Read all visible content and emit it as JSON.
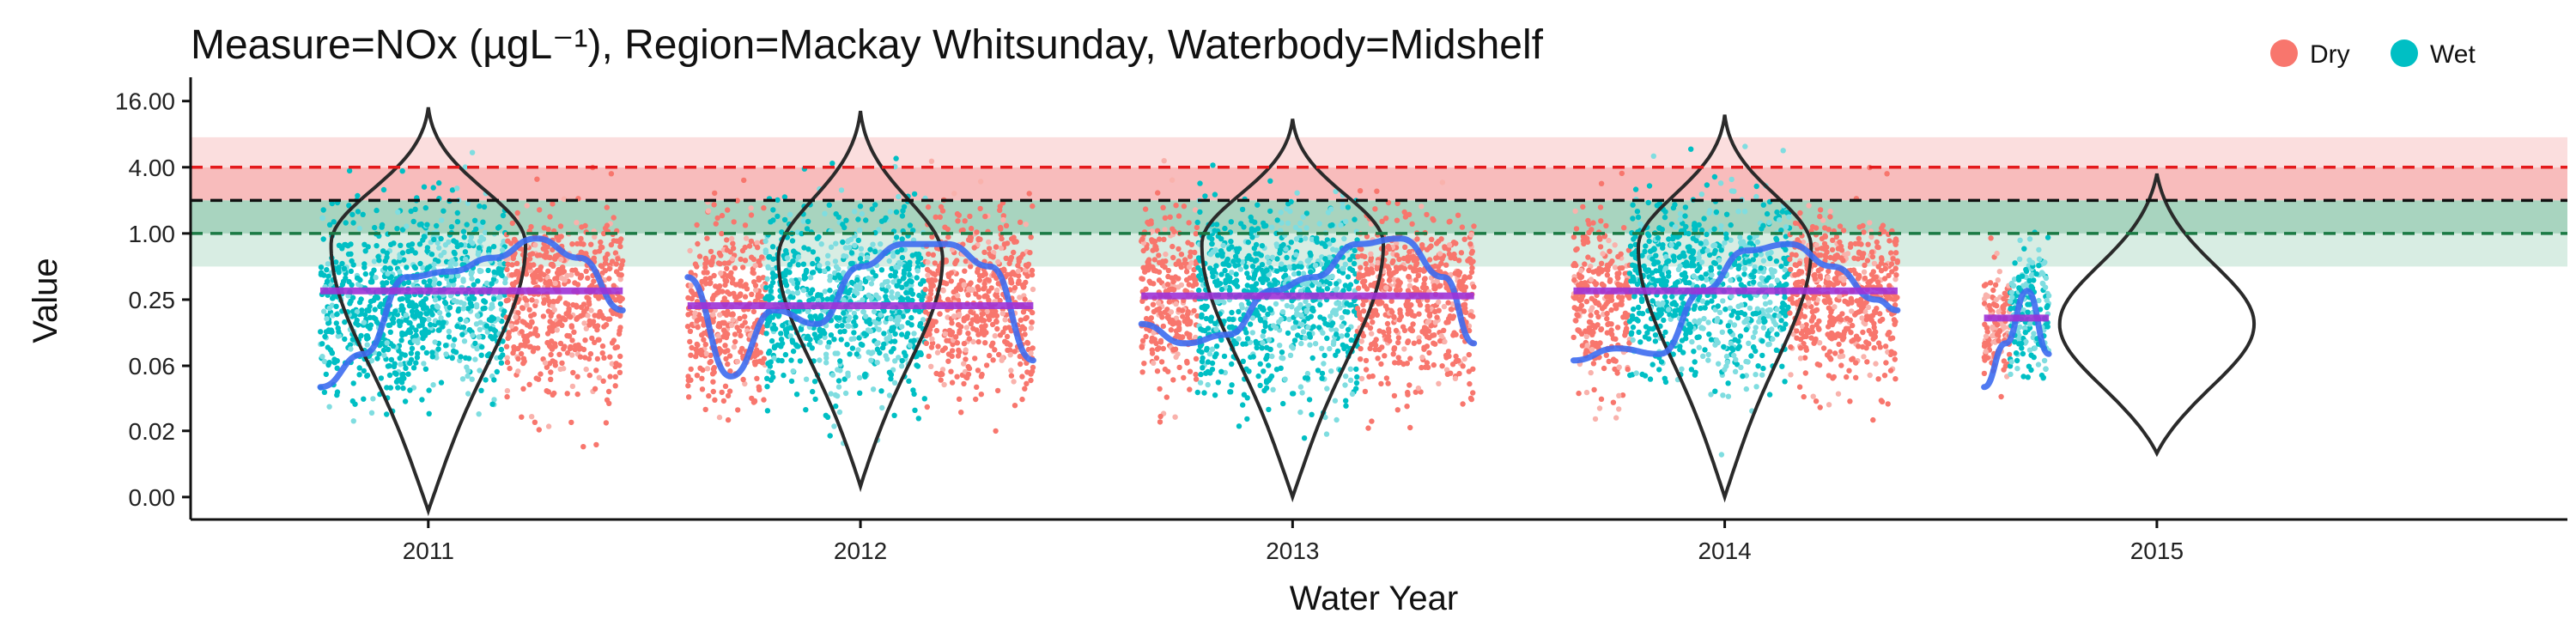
{
  "chart_data": {
    "type": "scatter",
    "title": "Measure=NOx (µgL⁻¹), Region=Mackay Whitsunday, Waterbody=Midshelf",
    "xlabel": "Water Year",
    "ylabel": "Value",
    "y_scale": "log2",
    "ylim": [
      0.0025,
      22
    ],
    "y_ticks": [
      {
        "value": 0.004,
        "label": "0.00"
      },
      {
        "value": 0.016,
        "label": "0.02"
      },
      {
        "value": 0.0625,
        "label": "0.06"
      },
      {
        "value": 0.25,
        "label": "0.25"
      },
      {
        "value": 1,
        "label": "1.00"
      },
      {
        "value": 4,
        "label": "4.00"
      },
      {
        "value": 16,
        "label": "16.00"
      }
    ],
    "x_ticks": [
      "2011",
      "2012",
      "2013",
      "2014",
      "2015"
    ],
    "legend": {
      "placement": "top-right",
      "entries": [
        {
          "label": "Dry",
          "color": "#F8766D"
        },
        {
          "label": "Wet",
          "color": "#00BFC4"
        }
      ]
    },
    "reference_bands": [
      {
        "from": 0.5,
        "to": 1.0,
        "color": "#d8ede3"
      },
      {
        "from": 1.0,
        "to": 2.0,
        "color": "#a8d4bf"
      },
      {
        "from": 2.0,
        "to": 4.0,
        "color": "#f8bcbc"
      },
      {
        "from": 4.0,
        "to": 7.5,
        "color": "#fbdede"
      }
    ],
    "reference_lines": [
      {
        "value": 4.0,
        "color": "#e41a1c"
      },
      {
        "value": 2.0,
        "color": "#111111"
      },
      {
        "value": 1.0,
        "color": "#1b7a44"
      }
    ],
    "years": [
      {
        "year": "2011",
        "periods": [
          {
            "season": "Wet",
            "from": 2010.75,
            "to": 2010.98,
            "lo": 0.006,
            "hi": 13,
            "median": 0.2
          },
          {
            "season": "Wet",
            "from": 2010.98,
            "to": 2011.18,
            "lo": 0.008,
            "hi": 11,
            "median": 0.3
          },
          {
            "season": "Dry",
            "from": 2011.18,
            "to": 2011.45,
            "lo": 0.004,
            "hi": 6,
            "median": 0.3
          }
        ],
        "mean": 0.3,
        "violin": {
          "min": 0.003,
          "max": 14,
          "mode": 0.8,
          "width": 0.45
        },
        "smooth": [
          [
            2010.75,
            0.04
          ],
          [
            2010.85,
            0.08
          ],
          [
            2010.95,
            0.4
          ],
          [
            2011.05,
            0.45
          ],
          [
            2011.15,
            0.6
          ],
          [
            2011.25,
            0.9
          ],
          [
            2011.35,
            0.6
          ],
          [
            2011.45,
            0.2
          ]
        ]
      },
      {
        "year": "2012",
        "periods": [
          {
            "season": "Dry",
            "from": 2011.6,
            "to": 2011.78,
            "lo": 0.006,
            "hi": 9,
            "median": 0.2
          },
          {
            "season": "Wet",
            "from": 2011.78,
            "to": 2012.15,
            "lo": 0.006,
            "hi": 12,
            "median": 0.25
          },
          {
            "season": "Dry",
            "from": 2012.15,
            "to": 2012.4,
            "lo": 0.006,
            "hi": 8,
            "median": 0.25
          }
        ],
        "mean": 0.22,
        "violin": {
          "min": 0.005,
          "max": 13,
          "mode": 0.6,
          "width": 0.38
        },
        "smooth": [
          [
            2011.6,
            0.4
          ],
          [
            2011.7,
            0.05
          ],
          [
            2011.8,
            0.2
          ],
          [
            2011.9,
            0.15
          ],
          [
            2012.0,
            0.5
          ],
          [
            2012.1,
            0.8
          ],
          [
            2012.2,
            0.8
          ],
          [
            2012.3,
            0.5
          ],
          [
            2012.4,
            0.07
          ]
        ]
      },
      {
        "year": "2013",
        "periods": [
          {
            "season": "Dry",
            "from": 2012.65,
            "to": 2012.78,
            "lo": 0.008,
            "hi": 9,
            "median": 0.25
          },
          {
            "season": "Wet",
            "from": 2012.78,
            "to": 2013.15,
            "lo": 0.004,
            "hi": 9,
            "median": 0.3
          },
          {
            "season": "Dry",
            "from": 2013.15,
            "to": 2013.42,
            "lo": 0.006,
            "hi": 6,
            "median": 0.3
          }
        ],
        "mean": 0.27,
        "violin": {
          "min": 0.004,
          "max": 11,
          "mode": 0.8,
          "width": 0.42
        },
        "smooth": [
          [
            2012.65,
            0.15
          ],
          [
            2012.75,
            0.1
          ],
          [
            2012.85,
            0.12
          ],
          [
            2012.95,
            0.3
          ],
          [
            2013.05,
            0.4
          ],
          [
            2013.15,
            0.8
          ],
          [
            2013.25,
            0.9
          ],
          [
            2013.35,
            0.4
          ],
          [
            2013.42,
            0.1
          ]
        ]
      },
      {
        "year": "2014",
        "periods": [
          {
            "season": "Dry",
            "from": 2013.65,
            "to": 2013.78,
            "lo": 0.005,
            "hi": 8,
            "median": 0.25
          },
          {
            "season": "Wet",
            "from": 2013.78,
            "to": 2014.15,
            "lo": 0.006,
            "hi": 12,
            "median": 0.35
          },
          {
            "season": "Dry",
            "from": 2014.15,
            "to": 2014.4,
            "lo": 0.008,
            "hi": 6,
            "median": 0.3
          }
        ],
        "mean": 0.3,
        "violin": {
          "min": 0.004,
          "max": 12,
          "mode": 0.75,
          "width": 0.4
        },
        "smooth": [
          [
            2013.65,
            0.07
          ],
          [
            2013.75,
            0.09
          ],
          [
            2013.85,
            0.08
          ],
          [
            2013.95,
            0.3
          ],
          [
            2014.05,
            0.7
          ],
          [
            2014.15,
            0.8
          ],
          [
            2014.25,
            0.5
          ],
          [
            2014.35,
            0.25
          ],
          [
            2014.4,
            0.2
          ]
        ]
      },
      {
        "year": "2015",
        "periods": [
          {
            "season": "Dry",
            "from": 2014.6,
            "to": 2014.66,
            "lo": 0.02,
            "hi": 1.5,
            "median": 0.15
          },
          {
            "season": "Wet",
            "from": 2014.66,
            "to": 2014.75,
            "lo": 0.015,
            "hi": 3,
            "median": 0.2
          }
        ],
        "mean": 0.17,
        "violin": {
          "min": 0.01,
          "max": 3.5,
          "mode": 0.15,
          "width": 0.45
        },
        "smooth": [
          [
            2014.6,
            0.04
          ],
          [
            2014.65,
            0.1
          ],
          [
            2014.7,
            0.3
          ],
          [
            2014.75,
            0.08
          ]
        ]
      }
    ],
    "colors": {
      "dry": "#F8766D",
      "wet": "#00BFC4",
      "dry_light": "#F9B2AC",
      "wet_light": "#7FDDE0",
      "smooth": "#3d6cf0",
      "mean": "#9d32d6",
      "violin": "#2a2a2a"
    }
  }
}
